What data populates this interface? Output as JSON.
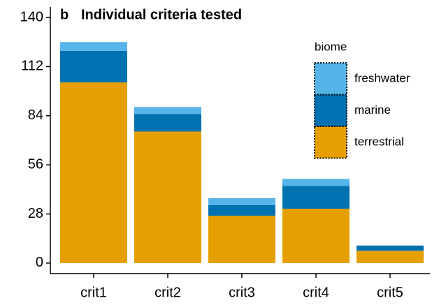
{
  "chart_data": {
    "type": "stacked_bar",
    "panel_label": "b",
    "title": "Individual criteria tested",
    "categories": [
      "crit1",
      "crit2",
      "crit3",
      "crit4",
      "crit5"
    ],
    "series": [
      {
        "name": "terrestrial",
        "color": "#E69F00",
        "values": [
          103,
          75,
          27,
          31,
          7
        ]
      },
      {
        "name": "marine",
        "color": "#0072B2",
        "values": [
          18,
          10,
          6,
          13,
          3
        ]
      },
      {
        "name": "freshwater",
        "color": "#56B4E9",
        "values": [
          5,
          4,
          4,
          4,
          0
        ]
      }
    ],
    "legend_title": "biome",
    "ylim": [
      -6,
      146
    ],
    "yticks": [
      0,
      28,
      56,
      84,
      112,
      140
    ]
  }
}
